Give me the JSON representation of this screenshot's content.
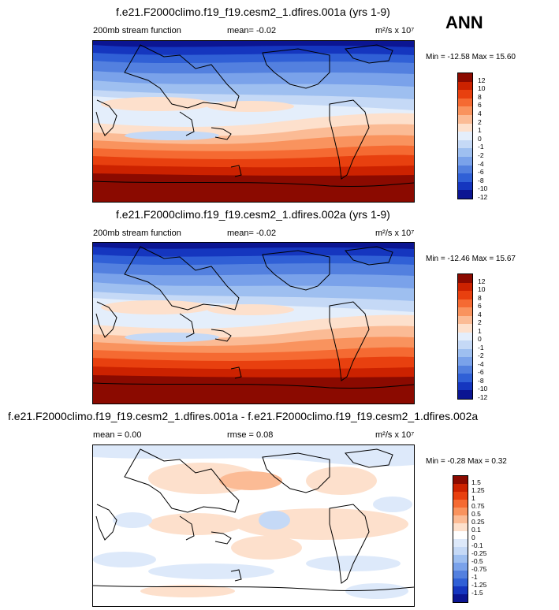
{
  "season": "ANN",
  "panels": [
    {
      "title": "f.e21.F2000climo.f19_f19.cesm2_1.dfires.001a (yrs 1-9)",
      "left_label": "200mb stream function",
      "mid_label": "mean=  -0.02",
      "units": "m²/s x 10⁷",
      "minmax": "Min = -12.58 Max =  15.60",
      "colorbar_labels": [
        "12",
        "10",
        "8",
        "6",
        "4",
        "2",
        "1",
        "0",
        "-1",
        "-2",
        "-4",
        "-6",
        "-8",
        "-10",
        "-12"
      ],
      "colorbar_colors": [
        "#8b0a00",
        "#cc2200",
        "#e8400f",
        "#f56a32",
        "#f9935e",
        "#fbbb95",
        "#fde0cc",
        "#e4eefb",
        "#c5d9f6",
        "#9ebff0",
        "#7aa2ea",
        "#5380df",
        "#3060d6",
        "#1536bf",
        "#0b1592"
      ]
    },
    {
      "title": "f.e21.F2000climo.f19_f19.cesm2_1.dfires.002a (yrs 1-9)",
      "left_label": "200mb stream function",
      "mid_label": "mean=  -0.02",
      "units": "m²/s x 10⁷",
      "minmax": "Min = -12.46 Max =  15.67",
      "colorbar_labels": [
        "12",
        "10",
        "8",
        "6",
        "4",
        "2",
        "1",
        "0",
        "-1",
        "-2",
        "-4",
        "-6",
        "-8",
        "-10",
        "-12"
      ],
      "colorbar_colors": [
        "#8b0a00",
        "#cc2200",
        "#e8400f",
        "#f56a32",
        "#f9935e",
        "#fbbb95",
        "#fde0cc",
        "#e4eefb",
        "#c5d9f6",
        "#9ebff0",
        "#7aa2ea",
        "#5380df",
        "#3060d6",
        "#1536bf",
        "#0b1592"
      ]
    },
    {
      "title": "f.e21.F2000climo.f19_f19.cesm2_1.dfires.001a - f.e21.F2000climo.f19_f19.cesm2_1.dfires.002a",
      "left_label": "mean =   0.00",
      "mid_label": "rmse =  0.08",
      "units": "m²/s x 10⁷",
      "minmax": "Min = -0.28 Max =  0.32",
      "colorbar_labels": [
        "1.5",
        "1.25",
        "1",
        "0.75",
        "0.5",
        "0.25",
        "0.1",
        "0",
        "-0.1",
        "-0.25",
        "-0.5",
        "-0.75",
        "-1",
        "-1.25",
        "-1.5"
      ],
      "colorbar_colors": [
        "#8b0a00",
        "#cc2200",
        "#e8400f",
        "#f56a32",
        "#f9935e",
        "#fbbb95",
        "#fde0cc",
        "#ffffff",
        "#dde9fa",
        "#c5d9f6",
        "#9ebff0",
        "#7aa2ea",
        "#5380df",
        "#3060d6",
        "#1536bf",
        "#0b1592"
      ]
    }
  ]
}
